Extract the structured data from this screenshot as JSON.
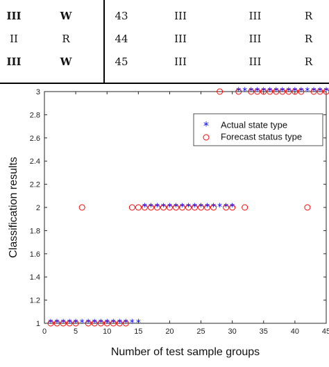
{
  "table": {
    "rows": [
      {
        "c1": "III",
        "c2": "W",
        "c3": "43",
        "c4": "III",
        "c5": "III",
        "c6": "R",
        "bold": true
      },
      {
        "c1": "II",
        "c2": "R",
        "c3": "44",
        "c4": "III",
        "c5": "III",
        "c6": "R",
        "bold": false
      },
      {
        "c1": "III",
        "c2": "W",
        "c3": "45",
        "c4": "III",
        "c5": "III",
        "c6": "R",
        "bold": true
      }
    ]
  },
  "chart_data": {
    "type": "scatter",
    "xlabel": "Number of test sample groups",
    "ylabel": "Classification results",
    "xlim": [
      0,
      45
    ],
    "ylim": [
      1,
      3
    ],
    "xticks": [
      0,
      5,
      10,
      15,
      20,
      25,
      30,
      35,
      40,
      45
    ],
    "xtick_labels": [
      "0",
      "5",
      "10",
      "15",
      "20",
      "25",
      "30",
      "35",
      "40",
      "45"
    ],
    "yticks": [
      1,
      1.2,
      1.4,
      1.6,
      1.8,
      2,
      2.2,
      2.4,
      2.6,
      2.8,
      3
    ],
    "ytick_labels": [
      "1",
      "1.2",
      "1.4",
      "1.6",
      "1.8",
      "2",
      "2.2",
      "2.4",
      "2.6",
      "2.8",
      "3"
    ],
    "grid": false,
    "legend_position": "top-right",
    "series": [
      {
        "name": "Actual state type",
        "marker": "asterisk",
        "color": "#0000ff",
        "x": [
          1,
          2,
          3,
          4,
          5,
          6,
          7,
          8,
          9,
          10,
          11,
          12,
          13,
          14,
          15,
          16,
          17,
          18,
          19,
          20,
          21,
          22,
          23,
          24,
          25,
          26,
          27,
          28,
          29,
          30,
          31,
          32,
          33,
          34,
          35,
          36,
          37,
          38,
          39,
          40,
          41,
          42,
          43,
          44,
          45
        ],
        "y": [
          1,
          1,
          1,
          1,
          1,
          1,
          1,
          1,
          1,
          1,
          1,
          1,
          1,
          1,
          1,
          2,
          2,
          2,
          2,
          2,
          2,
          2,
          2,
          2,
          2,
          2,
          2,
          2,
          2,
          2,
          3,
          3,
          3,
          3,
          3,
          3,
          3,
          3,
          3,
          3,
          3,
          3,
          3,
          3,
          3
        ]
      },
      {
        "name": "Forecast status type",
        "marker": "circle",
        "color": "#ff0000",
        "x": [
          1,
          2,
          3,
          4,
          5,
          6,
          7,
          8,
          9,
          10,
          11,
          12,
          13,
          14,
          15,
          16,
          17,
          18,
          19,
          20,
          21,
          22,
          23,
          24,
          25,
          26,
          27,
          28,
          29,
          30,
          31,
          32,
          33,
          34,
          35,
          36,
          37,
          38,
          39,
          40,
          41,
          42,
          43,
          44,
          45
        ],
        "y": [
          1,
          1,
          1,
          1,
          1,
          2,
          1,
          1,
          1,
          1,
          1,
          1,
          1,
          2,
          2,
          2,
          2,
          2,
          2,
          2,
          2,
          2,
          2,
          2,
          2,
          2,
          2,
          3,
          2,
          2,
          3,
          2,
          3,
          3,
          3,
          3,
          3,
          3,
          3,
          3,
          3,
          2,
          3,
          3,
          3
        ]
      }
    ]
  }
}
